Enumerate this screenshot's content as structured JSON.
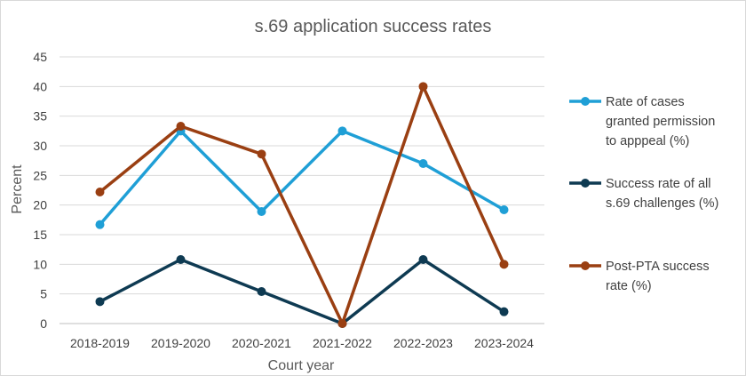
{
  "chart_data": {
    "type": "line",
    "title": "s.69 application success rates",
    "xlabel": "Court year",
    "ylabel": "Percent",
    "categories": [
      "2018-2019",
      "2019-2020",
      "2020-2021",
      "2021-2022",
      "2022-2023",
      "2023-2024"
    ],
    "ylim": [
      0,
      45
    ],
    "yticks": [
      0,
      5,
      10,
      15,
      20,
      25,
      30,
      35,
      40,
      45
    ],
    "grid": true,
    "legend_position": "right",
    "series": [
      {
        "name": "Rate of cases granted permission to apppeal (%)",
        "legend_lines": [
          "Rate of cases",
          "granted permission",
          "to apppeal (%)"
        ],
        "color": "#1f9fd6",
        "values": [
          16.7,
          32.5,
          18.9,
          32.5,
          27.0,
          19.2
        ]
      },
      {
        "name": "Success rate of all s.69 challenges (%)",
        "legend_lines": [
          "Success rate of all",
          "s.69 challenges (%)"
        ],
        "color": "#0e3a52",
        "values": [
          3.7,
          10.8,
          5.4,
          0.0,
          10.8,
          2.0
        ]
      },
      {
        "name": "Post-PTA success rate (%)",
        "legend_lines": [
          "Post-PTA success",
          "rate (%)"
        ],
        "color": "#9a3f12",
        "values": [
          22.2,
          33.3,
          28.6,
          0.0,
          40.0,
          10.0
        ]
      }
    ]
  }
}
